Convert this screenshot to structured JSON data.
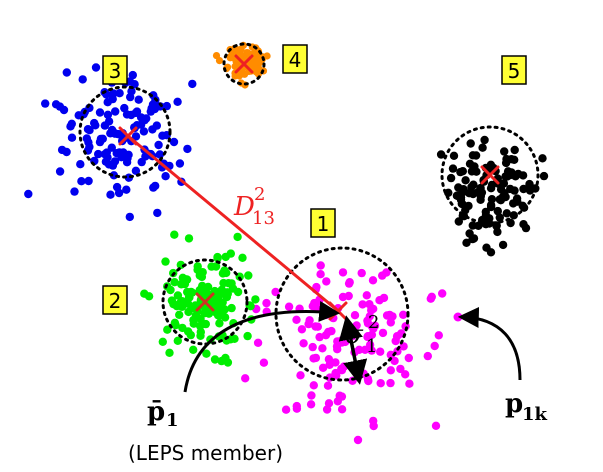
{
  "clusters": [
    {
      "label": "1",
      "color": "#ff00ff",
      "n": 140,
      "spread_x": 62,
      "spread_y": 72,
      "seed": 11
    },
    {
      "label": "2",
      "color": "#00ee00",
      "n": 140,
      "spread_x": 34,
      "spread_y": 40,
      "seed": 22
    },
    {
      "label": "3",
      "color": "#0000ee",
      "n": 140,
      "spread_x": 52,
      "spread_y": 50,
      "seed": 33
    },
    {
      "label": "4",
      "color": "#ff8c00",
      "n": 95,
      "spread_x": 18,
      "spread_y": 16,
      "seed": 44
    },
    {
      "label": "5",
      "color": "#000000",
      "n": 120,
      "spread_x": 38,
      "spread_y": 40,
      "seed": 55
    }
  ],
  "colors": {
    "label_box_fill": "#ffff33",
    "centroid_marker": "#ee2222",
    "distance_line": "#ee2222",
    "arrow": "#000000"
  },
  "annotations": {
    "distance": {
      "base": "D",
      "superscript": "2",
      "subscript": "13"
    },
    "variance": {
      "base": "σ",
      "superscript": "2",
      "subscript": "1"
    },
    "member_mean": {
      "text": "p̄",
      "subscript": "1"
    },
    "member_point": {
      "text": "p",
      "subscript": "1k"
    },
    "leps_note": "(LEPS member)"
  }
}
